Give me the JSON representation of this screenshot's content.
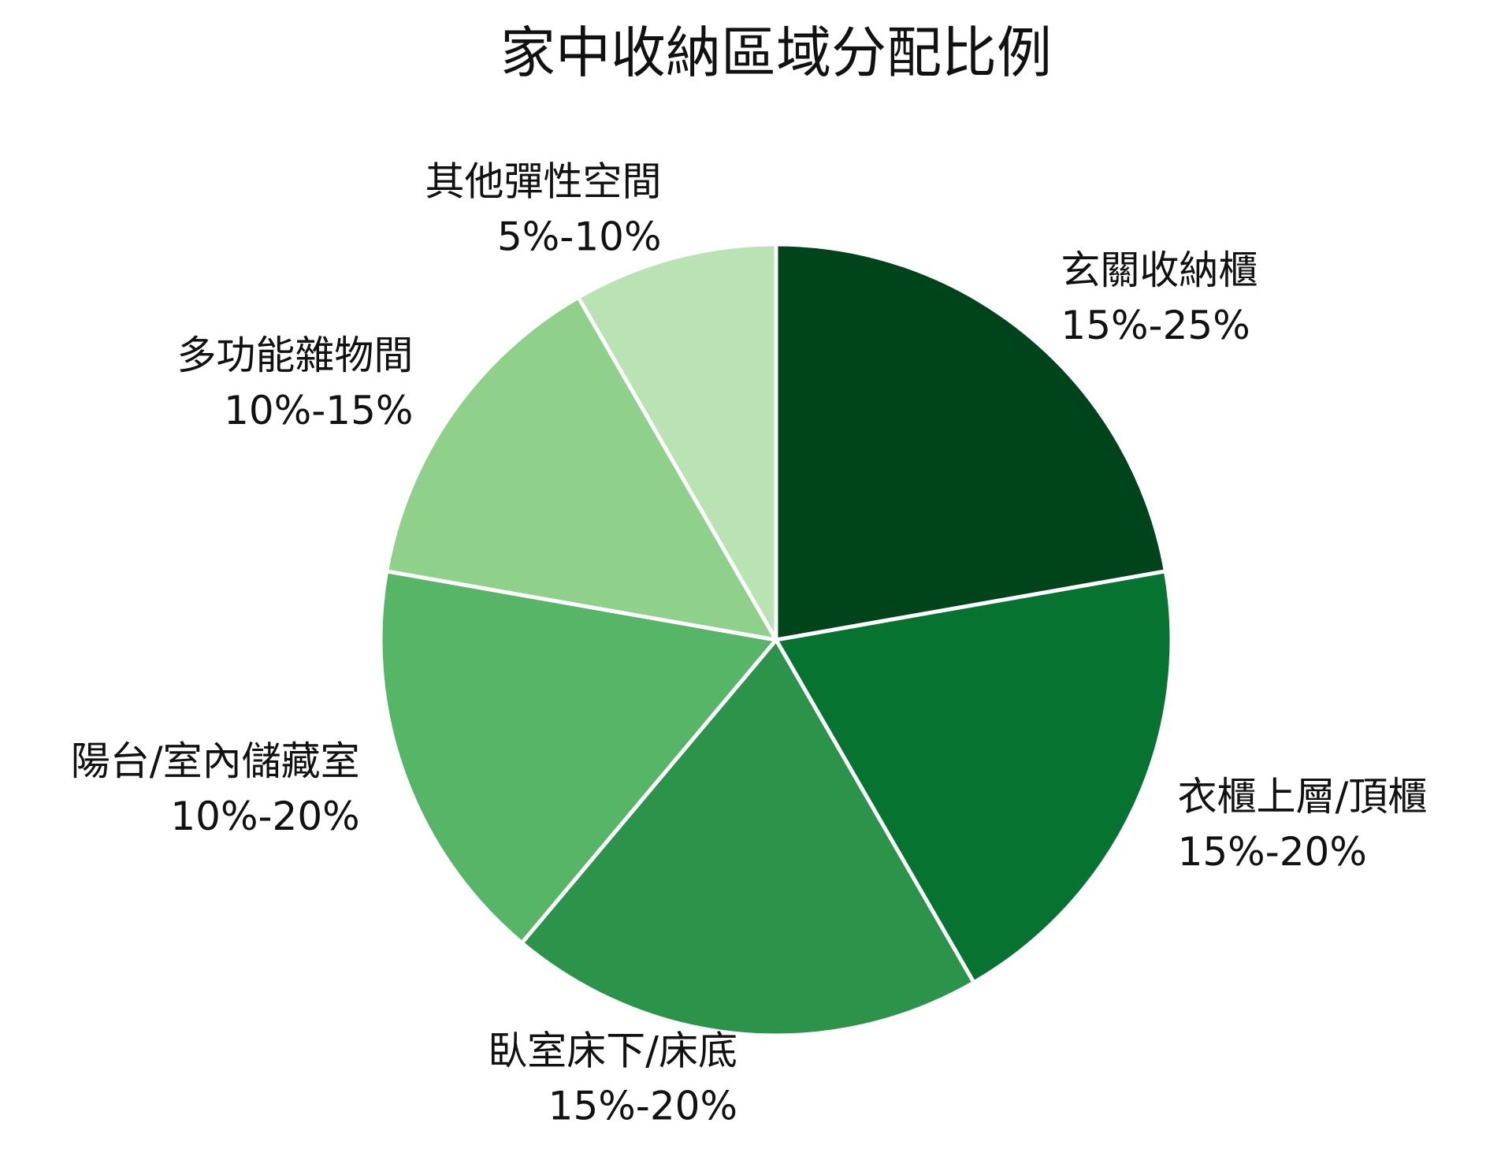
{
  "chart_data": {
    "type": "pie",
    "title": "家中收納區域分配比例",
    "categories": [
      "玄關收納櫃",
      "衣櫃上層/頂櫃",
      "臥室床下/床底",
      "陽台/室內儲藏室",
      "多功能雜物間",
      "其他彈性空間"
    ],
    "values": [
      20,
      17.5,
      17.5,
      15,
      12.5,
      7.5
    ],
    "value_labels": [
      "15%-25%",
      "15%-20%",
      "15%-20%",
      "10%-20%",
      "10%-15%",
      "5%-10%"
    ],
    "colors": [
      "#00441b",
      "#077331",
      "#2c934b",
      "#56b567",
      "#8fd08a",
      "#b9e3b2"
    ]
  }
}
